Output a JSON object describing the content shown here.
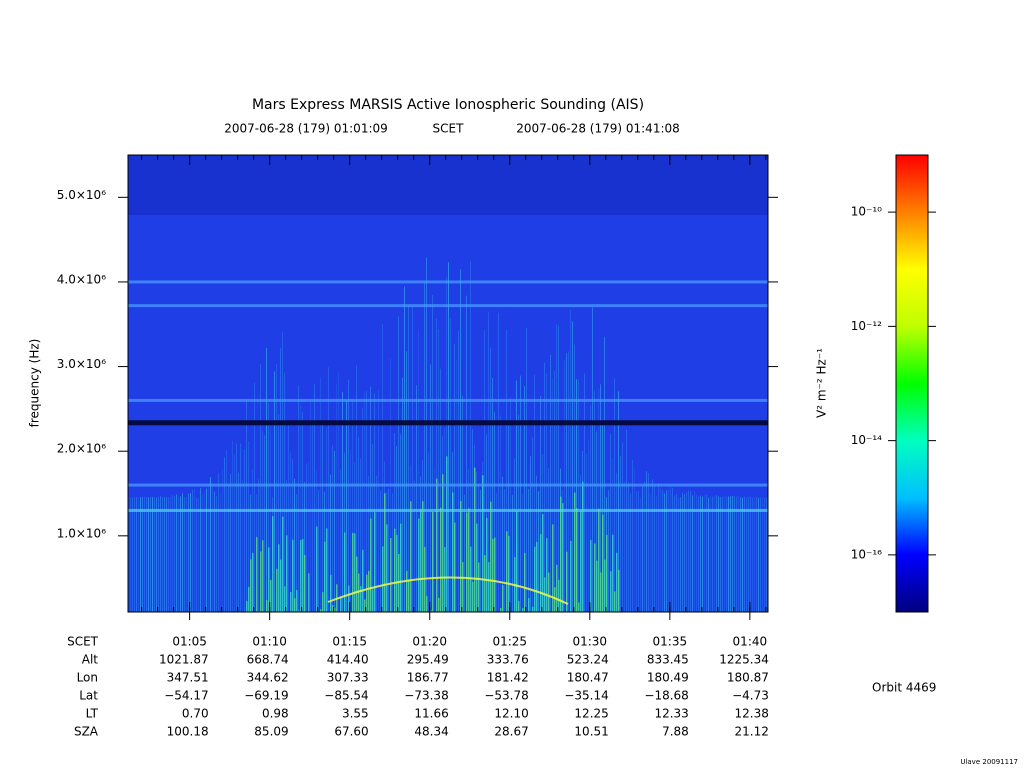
{
  "chart_data": {
    "type": "spectrogram",
    "title": "Mars Express MARSIS Active Ionospheric Sounding (AIS)",
    "subtitle": {
      "start": "2007-06-28 (179) 01:01:09",
      "middle": "SCET",
      "end": "2007-06-28 (179) 01:41:08"
    },
    "ylabel": "frequency (Hz)",
    "ylim": [
      100000,
      5500000
    ],
    "yticks": [
      {
        "value": 1000000,
        "label": "1.0×10⁶"
      },
      {
        "value": 2000000,
        "label": "2.0×10⁶"
      },
      {
        "value": 3000000,
        "label": "3.0×10⁶"
      },
      {
        "value": 4000000,
        "label": "4.0×10⁶"
      },
      {
        "value": 5000000,
        "label": "5.0×10⁶"
      }
    ],
    "colorbar": {
      "label": "V² m⁻² Hz⁻¹",
      "log": true,
      "lim": [
        1e-17,
        1e-09
      ],
      "ticks": [
        {
          "value": 1e-10,
          "label": "10⁻¹⁰"
        },
        {
          "value": 1e-12,
          "label": "10⁻¹²"
        },
        {
          "value": 1e-14,
          "label": "10⁻¹⁴"
        },
        {
          "value": 1e-16,
          "label": "10⁻¹⁶"
        }
      ],
      "colors": [
        "#00007f",
        "#0000ff",
        "#00bfff",
        "#00ffbf",
        "#00ff00",
        "#bfff00",
        "#ffff00",
        "#ff8000",
        "#ff0000"
      ]
    },
    "ephemeris": {
      "header": "SCET",
      "categories": [
        "01:05",
        "01:10",
        "01:15",
        "01:20",
        "01:25",
        "01:30",
        "01:35",
        "01:40"
      ],
      "rows": [
        {
          "name": "Alt",
          "values": [
            "1021.87",
            "668.74",
            "414.40",
            "295.49",
            "333.76",
            "523.24",
            "833.45",
            "1225.34"
          ]
        },
        {
          "name": "Lon",
          "values": [
            "347.51",
            "344.62",
            "307.33",
            "186.77",
            "181.42",
            "180.47",
            "180.49",
            "180.87"
          ]
        },
        {
          "name": "Lat",
          "values": [
            "−54.17",
            "−69.19",
            "−85.54",
            "−73.38",
            "−53.78",
            "−35.14",
            "−18.68",
            "−4.73"
          ]
        },
        {
          "name": "LT",
          "values": [
            "0.70",
            "0.98",
            "3.55",
            "11.66",
            "12.10",
            "12.25",
            "12.33",
            "12.38"
          ]
        },
        {
          "name": "SZA",
          "values": [
            "100.18",
            "85.09",
            "67.60",
            "48.34",
            "28.67",
            "10.51",
            "7.88",
            "21.12"
          ]
        }
      ]
    },
    "orbit": "Orbit 4469",
    "footer": "Ulave 20091117"
  }
}
